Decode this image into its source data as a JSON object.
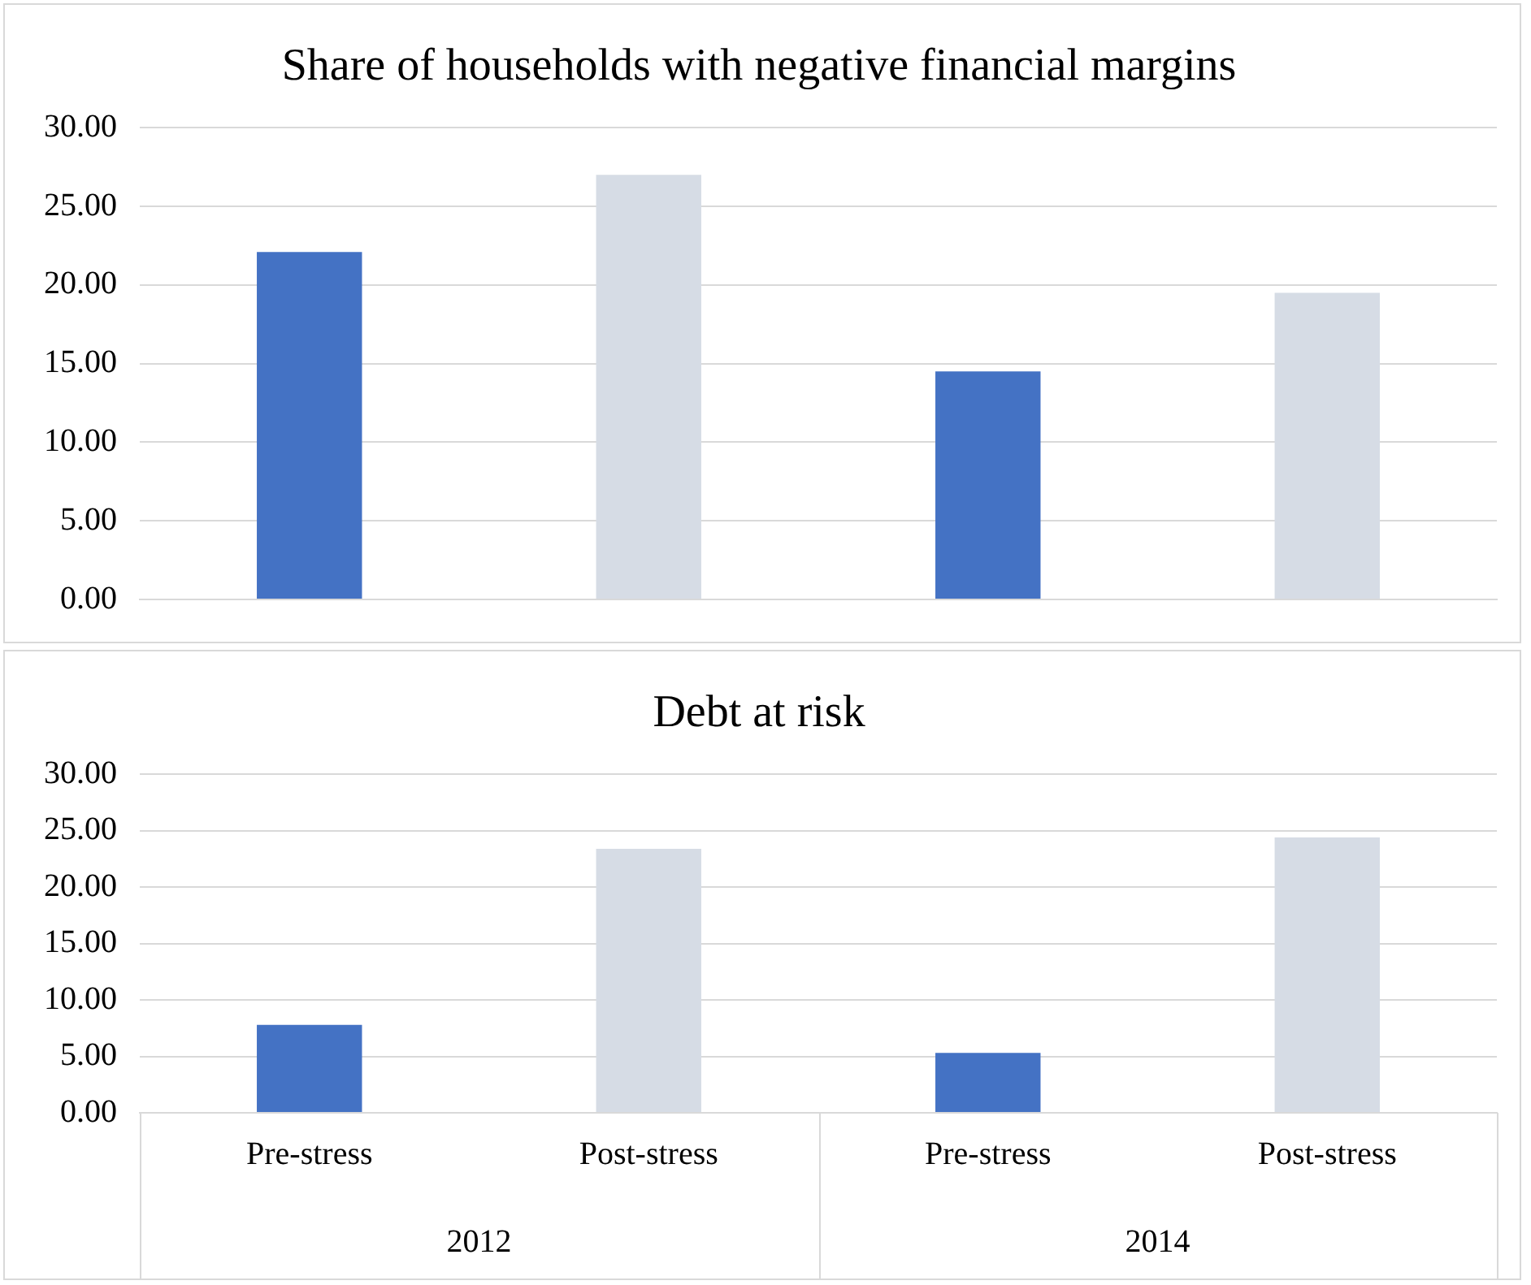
{
  "chart_data": [
    {
      "type": "bar",
      "title": "Share of households with negative financial margins",
      "categories": [
        null,
        null,
        null,
        null
      ],
      "values": [
        22.1,
        27.0,
        14.5,
        19.5
      ],
      "colors": [
        "#4472c4",
        "#d6dce5",
        "#4472c4",
        "#d6dce5"
      ],
      "ylim": [
        0,
        30
      ],
      "yticks": [
        {
          "value": 0,
          "label": "0.00"
        },
        {
          "value": 5,
          "label": "5.00"
        },
        {
          "value": 10,
          "label": "10.00"
        },
        {
          "value": 15,
          "label": "15.00"
        },
        {
          "value": 20,
          "label": "20.00"
        },
        {
          "value": 25,
          "label": "25.00"
        },
        {
          "value": 30,
          "label": "30.00"
        }
      ],
      "grid": "y",
      "tick_labels": "y"
    },
    {
      "type": "bar",
      "title": "Debt at risk",
      "categories": [
        "Pre-stress",
        "Post-stress",
        "Pre-stress",
        "Post-stress"
      ],
      "values": [
        7.8,
        23.4,
        5.3,
        24.4
      ],
      "colors": [
        "#4472c4",
        "#d6dce5",
        "#4472c4",
        "#d6dce5"
      ],
      "ylim": [
        0,
        30
      ],
      "yticks": [
        {
          "value": 0,
          "label": "0.00"
        },
        {
          "value": 5,
          "label": "5.00"
        },
        {
          "value": 10,
          "label": "10.00"
        },
        {
          "value": 15,
          "label": "15.00"
        },
        {
          "value": 20,
          "label": "20.00"
        },
        {
          "value": 25,
          "label": "25.00"
        },
        {
          "value": 30,
          "label": "30.00"
        }
      ],
      "grid": "y",
      "annotations": [
        "2012",
        "2014"
      ]
    }
  ]
}
